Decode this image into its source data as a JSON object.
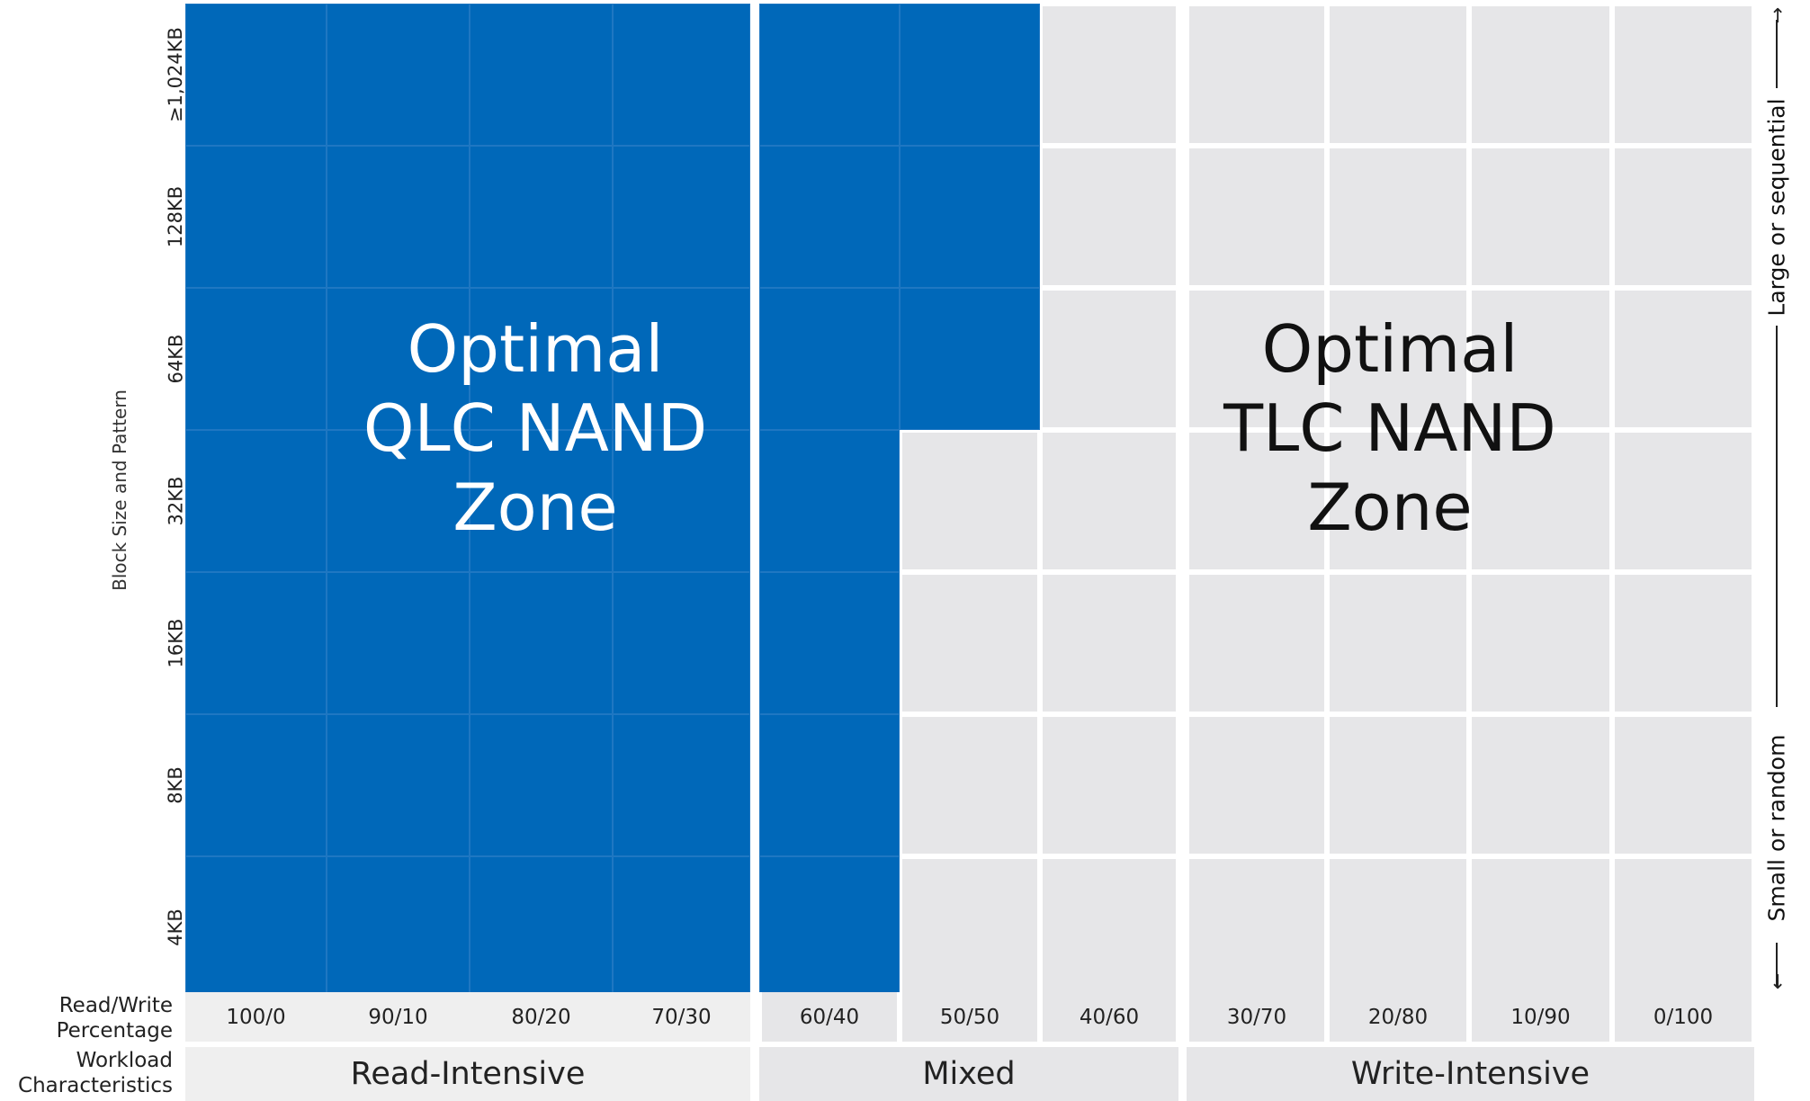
{
  "chart_data": {
    "type": "heatmap",
    "ylabel": "Block Size and Pattern",
    "y_categories": [
      "≥1,024KB",
      "128KB",
      "64KB",
      "32KB",
      "16KB",
      "8KB",
      "4KB"
    ],
    "x_row_label": "Read/Write Percentage",
    "x_categories": [
      "100/0",
      "90/10",
      "80/20",
      "70/30",
      "60/40",
      "50/50",
      "40/60",
      "30/70",
      "20/80",
      "10/90",
      "0/100"
    ],
    "workload_row_label": "Workload Characteristics",
    "workload_groups": [
      {
        "label": "Read-Intensive",
        "columns": [
          "100/0",
          "90/10",
          "80/20",
          "70/30"
        ]
      },
      {
        "label": "Mixed",
        "columns": [
          "60/40",
          "50/50",
          "40/60"
        ]
      },
      {
        "label": "Write-Intensive",
        "columns": [
          "30/70",
          "20/80",
          "10/90",
          "0/100"
        ]
      }
    ],
    "qlc_zone_extent": {
      "≥1,024KB": "50/50",
      "128KB": "50/50",
      "64KB": "50/50",
      "32KB": "60/40",
      "16KB": "60/40",
      "8KB": "60/40",
      "4KB": "60/40"
    },
    "zones": [
      {
        "label_lines": [
          "Optimal",
          "QLC NAND",
          "Zone"
        ],
        "color": "#0068b9"
      },
      {
        "label_lines": [
          "Optimal",
          "TLC NAND",
          "Zone"
        ],
        "color": "#e6e6e8"
      }
    ],
    "side_axis": {
      "top": "Large or sequential",
      "bottom": "Small or random"
    }
  }
}
